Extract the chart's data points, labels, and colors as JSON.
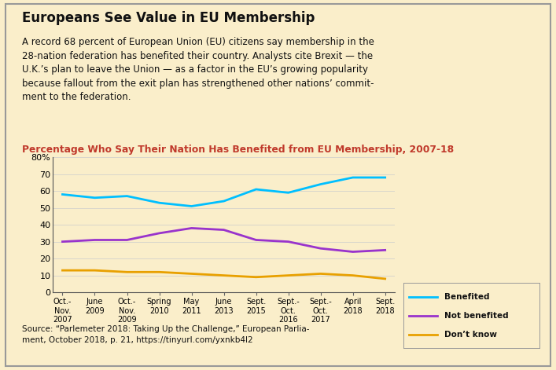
{
  "title": "Europeans See Value in EU Membership",
  "subtitle": "A record 68 percent of European Union (EU) citizens say membership in the\n28-nation federation has benefited their country. Analysts cite Brexit — the\nU.K.’s plan to leave the Union — as a factor in the EU’s growing popularity\nbecause fallout from the exit plan has strengthened other nations’ commit-\nment to the federation.",
  "chart_title": "Percentage Who Say Their Nation Has Benefited from EU Membership, 2007-18",
  "source": "Source: “Parlemeter 2018: Taking Up the Challenge,” European Parlia-\nment, October 2018, p. 21, https://tinyurl.com/yxnkb4l2",
  "x_labels": [
    "Oct.-\nNov.\n2007",
    "June\n2009",
    "Oct.-\nNov.\n2009",
    "Spring\n2010",
    "May\n2011",
    "June\n2013",
    "Sept.\n2015",
    "Sept.-\nOct.\n2016",
    "Sept.-\nOct.\n2017",
    "April\n2018",
    "Sept.\n2018"
  ],
  "benefited": [
    58,
    56,
    57,
    53,
    51,
    54,
    61,
    59,
    64,
    68,
    68
  ],
  "not_benefited": [
    30,
    31,
    31,
    35,
    38,
    37,
    31,
    30,
    26,
    24,
    25
  ],
  "dont_know": [
    13,
    13,
    12,
    12,
    11,
    10,
    9,
    10,
    11,
    10,
    8
  ],
  "benefited_color": "#00bfff",
  "not_benefited_color": "#9933cc",
  "dont_know_color": "#e8a000",
  "background_color": "#faeeca",
  "chart_title_color": "#c0392b",
  "title_color": "#111111",
  "text_color": "#111111",
  "ylim": [
    0,
    80
  ],
  "yticks": [
    0,
    10,
    20,
    30,
    40,
    50,
    60,
    70,
    80
  ],
  "legend_labels": [
    "Benefited",
    "Not benefited",
    "Don’t know"
  ]
}
